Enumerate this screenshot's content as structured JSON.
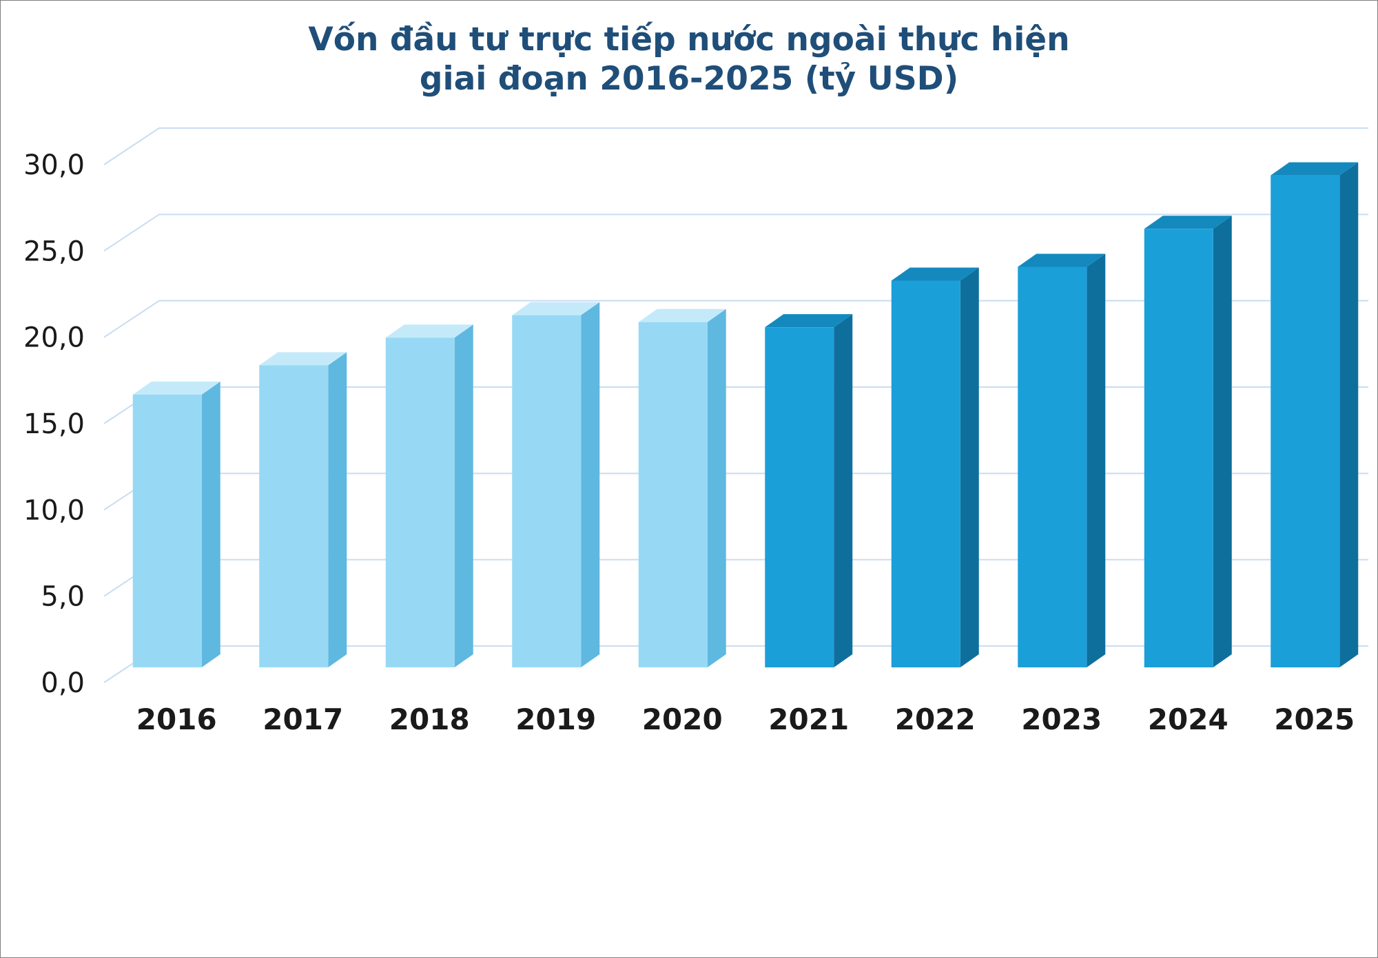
{
  "window": {
    "background": "#FFFFFF",
    "border_color": "#7F7F7F"
  },
  "chart_data": {
    "type": "bar",
    "style": "3d-column",
    "title": "Vốn đầu tư trực tiếp nước ngoài thực hiện giai đoạn 2016-2025 (tỷ USD)",
    "title_lines": [
      "Vốn đầu tư trực tiếp nước ngoài thực hiện",
      "giai đoạn 2016-2025 (tỷ USD)"
    ],
    "unit": "tỷ USD",
    "xlabel": "",
    "ylabel": "",
    "categories": [
      "2016",
      "2017",
      "2018",
      "2019",
      "2020",
      "2021",
      "2022",
      "2023",
      "2024",
      "2025"
    ],
    "values": [
      15.8,
      17.5,
      19.1,
      20.4,
      20.0,
      19.7,
      22.4,
      23.2,
      25.4,
      28.5
    ],
    "ylim": [
      0,
      30
    ],
    "ytick_interval": 5,
    "yticks": [
      {
        "value": 0,
        "label": "0,0"
      },
      {
        "value": 5,
        "label": "5,0"
      },
      {
        "value": 10,
        "label": "10,0"
      },
      {
        "value": 15,
        "label": "15,0"
      },
      {
        "value": 20,
        "label": "20,0"
      },
      {
        "value": 25,
        "label": "25,0"
      },
      {
        "value": 30,
        "label": "30,0"
      }
    ],
    "grid": true,
    "legend": "none",
    "colors_per_bar": [
      "light",
      "light",
      "light",
      "light",
      "light",
      "dark",
      "dark",
      "dark",
      "dark",
      "dark"
    ],
    "bar_colors": {
      "light": {
        "front": "#97D9F5",
        "top": "#C4EAFA",
        "side": "#5FB8E0"
      },
      "dark": {
        "front": "#1B9FD9",
        "top": "#1489BE",
        "side": "#0F6F9C"
      }
    },
    "gridline_color": "#C9DCF2",
    "title_color": "#1F4E79",
    "axis_label_color": "#1A1A1A"
  }
}
